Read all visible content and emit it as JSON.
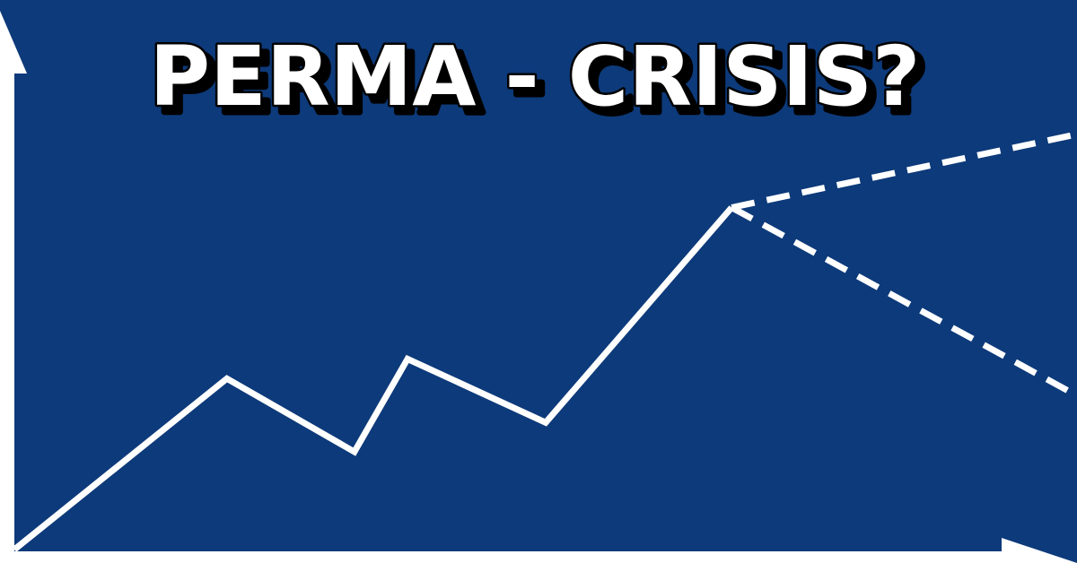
{
  "colors": {
    "background": "#0d3a7a",
    "line": "#ffffff",
    "title_fill": "#ffffff",
    "title_shadow": "#000000"
  },
  "chart_data": {
    "type": "line",
    "title": "PERMA - CRISIS?",
    "xlabel": "",
    "ylabel": "",
    "grid": false,
    "legend": "none",
    "xlim": [
      0,
      10
    ],
    "ylim": [
      0,
      10
    ],
    "series": [
      {
        "style": "solid",
        "x": [
          0.0,
          2.0,
          3.2,
          3.7,
          5.0,
          6.75
        ],
        "y": [
          0.0,
          3.5,
          2.0,
          3.9,
          2.6,
          7.0
        ]
      },
      {
        "style": "dashed",
        "x": [
          6.75,
          10.0
        ],
        "y": [
          7.0,
          8.5
        ]
      },
      {
        "style": "dashed",
        "x": [
          6.75,
          10.0
        ],
        "y": [
          7.0,
          3.15
        ]
      }
    ]
  }
}
